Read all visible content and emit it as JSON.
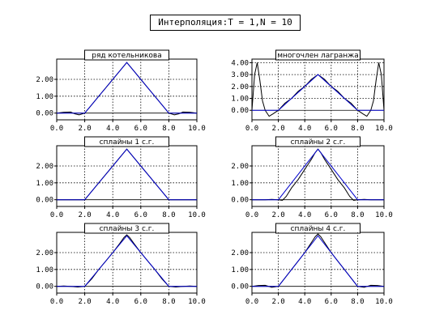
{
  "title": "Интерполяция:T = 1,N = 10",
  "colors": {
    "approx": "#000000",
    "exact": "#0000cc",
    "grid": "#000000"
  },
  "chart_data": [
    {
      "type": "line",
      "title": "ряд котельникова",
      "xlim": [
        0,
        10
      ],
      "ylim": [
        -0.4,
        3.2
      ],
      "xticks": [
        "0.0",
        "2.0",
        "4.0",
        "6.0",
        "8.0",
        "10.0"
      ],
      "yticks": [
        "0.00",
        "1.00",
        "2.00"
      ],
      "grid": true,
      "series": [
        {
          "x": [
            0,
            0.5,
            1,
            1.3,
            1.6,
            2,
            2.5,
            3,
            3.5,
            4,
            4.5,
            5,
            5.5,
            6,
            6.5,
            7,
            7.5,
            8,
            8.4,
            8.7,
            9,
            9.5,
            10
          ],
          "y": [
            0,
            0.05,
            0.06,
            -0.05,
            -0.1,
            0,
            0.5,
            1.0,
            1.5,
            2.0,
            2.5,
            3.0,
            2.5,
            2.0,
            1.5,
            1.0,
            0.5,
            0,
            -0.1,
            -0.05,
            0.06,
            0.05,
            0
          ]
        },
        {
          "x": [
            0,
            1,
            2,
            5,
            8,
            9,
            10
          ],
          "y": [
            0,
            0,
            0,
            3,
            0,
            0,
            0
          ]
        }
      ]
    },
    {
      "type": "line",
      "title": "многочлен лагранжа",
      "xlim": [
        0,
        10
      ],
      "ylim": [
        -0.8,
        4.3
      ],
      "xticks": [
        "0.0",
        "2.0",
        "4.0",
        "6.0",
        "8.0",
        "10.0"
      ],
      "yticks": [
        "0.00",
        "1.00",
        "2.00",
        "3.00",
        "4.00"
      ],
      "grid": true,
      "series": [
        {
          "x": [
            0,
            0.2,
            0.4,
            0.6,
            0.8,
            1.0,
            1.3,
            1.6,
            2.0,
            2.5,
            3,
            3.5,
            4,
            4.5,
            5,
            5.5,
            6,
            6.5,
            7,
            7.5,
            8,
            8.4,
            8.7,
            9.0,
            9.2,
            9.4,
            9.6,
            9.8,
            10
          ],
          "y": [
            0,
            3.0,
            4.0,
            2.5,
            0.8,
            0,
            -0.5,
            -0.3,
            0,
            0.6,
            1.0,
            1.6,
            2.0,
            2.6,
            3.0,
            2.6,
            2.0,
            1.6,
            1.0,
            0.6,
            0,
            -0.3,
            -0.5,
            0,
            0.8,
            2.5,
            4.0,
            3.0,
            0
          ]
        },
        {
          "x": [
            0,
            1,
            2,
            5,
            8,
            9,
            10
          ],
          "y": [
            0,
            0,
            0,
            3,
            0,
            0,
            0
          ]
        }
      ]
    },
    {
      "type": "line",
      "title": "сплайны 1 с.г.",
      "xlim": [
        0,
        10
      ],
      "ylim": [
        -0.4,
        3.2
      ],
      "xticks": [
        "0.0",
        "2.0",
        "4.0",
        "6.0",
        "8.0",
        "10.0"
      ],
      "yticks": [
        "0.00",
        "1.00",
        "2.00"
      ],
      "grid": true,
      "series": [
        {
          "x": [
            0,
            1,
            2,
            3,
            4,
            5,
            6,
            7,
            8,
            9,
            10
          ],
          "y": [
            0,
            0,
            0,
            1,
            2,
            3,
            2,
            1,
            0,
            0,
            0
          ]
        },
        {
          "x": [
            0,
            1,
            2,
            5,
            8,
            9,
            10
          ],
          "y": [
            0,
            0,
            0,
            3,
            0,
            0,
            0
          ]
        }
      ]
    },
    {
      "type": "line",
      "title": "сплайны 2 с.г.",
      "xlim": [
        0,
        10
      ],
      "ylim": [
        -0.4,
        3.2
      ],
      "xticks": [
        "0.0",
        "2.0",
        "4.0",
        "6.0",
        "8.0",
        "10.0"
      ],
      "yticks": [
        "0.00",
        "1.00",
        "2.00"
      ],
      "grid": true,
      "series": [
        {
          "x": [
            0,
            1,
            1.5,
            2,
            2.3,
            2.6,
            3,
            3.5,
            4,
            4.5,
            4.8,
            5,
            5.2,
            5.5,
            6,
            6.5,
            7,
            7.4,
            7.7,
            8,
            8.5,
            9,
            10
          ],
          "y": [
            0,
            0,
            0.02,
            0,
            -0.04,
            0.2,
            0.7,
            1.2,
            1.8,
            2.4,
            2.8,
            3.0,
            2.8,
            2.4,
            1.8,
            1.2,
            0.7,
            0.2,
            -0.04,
            0,
            0.02,
            0,
            0
          ]
        },
        {
          "x": [
            0,
            1,
            2,
            5,
            8,
            9,
            10
          ],
          "y": [
            0,
            0,
            0,
            3,
            0,
            0,
            0
          ]
        }
      ]
    },
    {
      "type": "line",
      "title": "сплайны 3 с.г.",
      "xlim": [
        0,
        10
      ],
      "ylim": [
        -0.4,
        3.2
      ],
      "xticks": [
        "0.0",
        "2.0",
        "4.0",
        "6.0",
        "8.0",
        "10.0"
      ],
      "yticks": [
        "0.00",
        "1.00",
        "2.00"
      ],
      "grid": true,
      "series": [
        {
          "x": [
            0,
            0.5,
            1,
            1.5,
            2,
            2.5,
            3,
            3.5,
            4,
            4.5,
            4.8,
            5,
            5.2,
            5.5,
            6,
            6.5,
            7,
            7.5,
            8,
            8.5,
            9,
            9.5,
            10
          ],
          "y": [
            0,
            0.02,
            0,
            -0.04,
            0,
            0.45,
            1.0,
            1.5,
            2.0,
            2.55,
            2.9,
            3.05,
            2.9,
            2.55,
            2.0,
            1.5,
            1.0,
            0.45,
            0,
            -0.04,
            0,
            0.02,
            0
          ]
        },
        {
          "x": [
            0,
            1,
            2,
            5,
            8,
            9,
            10
          ],
          "y": [
            0,
            0,
            0,
            3,
            0,
            0,
            0
          ]
        }
      ]
    },
    {
      "type": "line",
      "title": "сплайны 4 с.г.",
      "xlim": [
        0,
        10
      ],
      "ylim": [
        -0.4,
        3.2
      ],
      "xticks": [
        "0.0",
        "2.0",
        "4.0",
        "6.0",
        "8.0",
        "10.0"
      ],
      "yticks": [
        "0.00",
        "1.00",
        "2.00"
      ],
      "grid": true,
      "series": [
        {
          "x": [
            0,
            0.5,
            1,
            1.5,
            2,
            2.5,
            3,
            3.5,
            4,
            4.5,
            4.8,
            5,
            5.2,
            5.5,
            6,
            6.5,
            7,
            7.5,
            8,
            8.5,
            9,
            9.5,
            10
          ],
          "y": [
            0,
            0.05,
            0.06,
            -0.06,
            0,
            0.5,
            1.0,
            1.5,
            2.0,
            2.6,
            2.95,
            3.1,
            2.95,
            2.6,
            2.0,
            1.5,
            1.0,
            0.5,
            0,
            -0.06,
            0.06,
            0.05,
            0
          ]
        },
        {
          "x": [
            0,
            1,
            2,
            5,
            8,
            9,
            10
          ],
          "y": [
            0,
            0,
            0,
            3,
            0,
            0,
            0
          ]
        }
      ]
    }
  ]
}
